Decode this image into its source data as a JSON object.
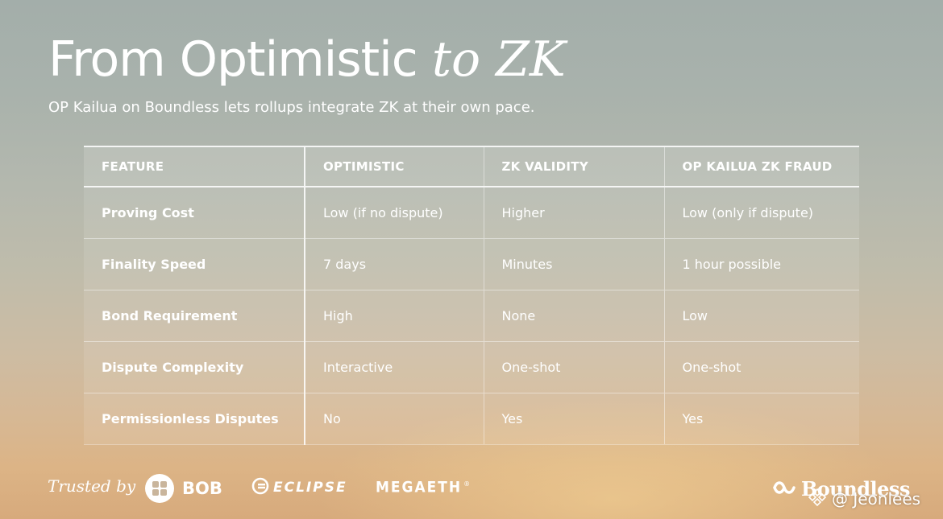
{
  "slide": {
    "title_main": "From Optimistic",
    "title_accent": "to ZK",
    "subtitle": "OP Kailua on Boundless lets rollups integrate ZK at their own pace."
  },
  "table": {
    "headers": [
      "FEATURE",
      "OPTIMISTIC",
      "ZK VALIDITY",
      "OP KAILUA ZK FRAUD"
    ],
    "rows": [
      {
        "feature": "Proving Cost",
        "optimistic": "Low (if no dispute)",
        "zk_validity": "Higher",
        "op_kailua": "Low (only if dispute)"
      },
      {
        "feature": "Finality Speed",
        "optimistic": "7 days",
        "zk_validity": "Minutes",
        "op_kailua": "1 hour possible"
      },
      {
        "feature": "Bond Requirement",
        "optimistic": "High",
        "zk_validity": "None",
        "op_kailua": "Low"
      },
      {
        "feature": "Dispute Complexity",
        "optimistic": "Interactive",
        "zk_validity": "One-shot",
        "op_kailua": "One-shot"
      },
      {
        "feature": "Permissionless Disputes",
        "optimistic": "No",
        "zk_validity": "Yes",
        "op_kailua": "Yes"
      }
    ]
  },
  "footer": {
    "trusted_by": "Trusted by",
    "logos": {
      "bob": {
        "name": "BOB",
        "icon": "bob-logo-icon"
      },
      "eclipse": {
        "name": "ECLIPSE",
        "icon": "eclipse-logo-icon"
      },
      "megaeth": {
        "name": "MEGAETH",
        "mark": "®"
      },
      "boundless": {
        "name": "Boundless",
        "icon": "boundless-logo-icon"
      }
    }
  },
  "watermark": {
    "text": "@ Jeonlees",
    "icon": "binance-diamond-icon"
  },
  "colors": {
    "text": "#ffffff",
    "sky_top": "#a3aeaa",
    "sky_bottom": "#d7aa7c"
  }
}
